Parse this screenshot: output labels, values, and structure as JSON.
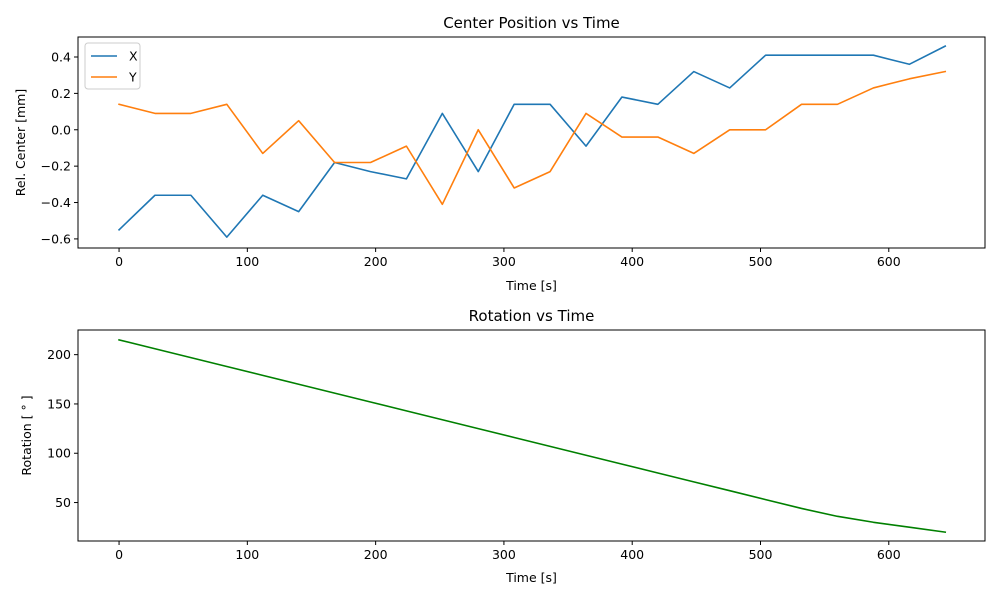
{
  "chart_data": [
    {
      "type": "line",
      "title": "Center Position vs Time",
      "xlabel": "Time [s]",
      "ylabel": "Rel. Center [mm]",
      "xlim": [
        -32,
        675
      ],
      "ylim": [
        -0.65,
        0.51
      ],
      "xticks": [
        0,
        100,
        200,
        300,
        400,
        500,
        600
      ],
      "yticks": [
        -0.6,
        -0.4,
        -0.2,
        0.0,
        0.2,
        0.4
      ],
      "ytick_labels": [
        "−0.6",
        "−0.4",
        "−0.2",
        "0.0",
        "0.2",
        "0.4"
      ],
      "legend": "top-left",
      "grid": false,
      "x": [
        0,
        28,
        56,
        84,
        112,
        140,
        168,
        196,
        224,
        252,
        280,
        308,
        336,
        364,
        392,
        420,
        448,
        476,
        504,
        532,
        560,
        588,
        616,
        644
      ],
      "series": [
        {
          "name": "X",
          "color": "#1f77b4",
          "values": [
            -0.55,
            -0.36,
            -0.36,
            -0.59,
            -0.36,
            -0.45,
            -0.18,
            -0.23,
            -0.27,
            0.09,
            -0.23,
            0.14,
            0.14,
            -0.09,
            0.18,
            0.14,
            0.32,
            0.23,
            0.41,
            0.41,
            0.41,
            0.41,
            0.36,
            0.46
          ]
        },
        {
          "name": "Y",
          "color": "#ff7f0e",
          "values": [
            0.14,
            0.09,
            0.09,
            0.14,
            -0.13,
            0.05,
            -0.18,
            -0.18,
            -0.09,
            -0.41,
            0.0,
            -0.32,
            -0.23,
            0.09,
            -0.04,
            -0.04,
            -0.13,
            0.0,
            0.0,
            0.14,
            0.14,
            0.23,
            0.28,
            0.32
          ]
        }
      ]
    },
    {
      "type": "line",
      "title": "Rotation vs Time",
      "xlabel": "Time [s]",
      "ylabel": "Rotation [$^\\circ$]",
      "ylabel_display": "Rotation [ ° ]",
      "xlim": [
        -32,
        675
      ],
      "ylim": [
        11,
        225
      ],
      "xticks": [
        0,
        100,
        200,
        300,
        400,
        500,
        600
      ],
      "yticks": [
        50,
        100,
        150,
        200
      ],
      "grid": false,
      "x": [
        0,
        28,
        56,
        84,
        112,
        140,
        168,
        196,
        224,
        252,
        280,
        308,
        336,
        364,
        392,
        420,
        448,
        476,
        504,
        532,
        560,
        588,
        616,
        644
      ],
      "series": [
        {
          "color": "#008000",
          "values": [
            215,
            206,
            197,
            188,
            179,
            170,
            161,
            152,
            143,
            134,
            125,
            116,
            107,
            98,
            89,
            80,
            71,
            62,
            53,
            44,
            36,
            30,
            25,
            20
          ]
        }
      ]
    }
  ]
}
